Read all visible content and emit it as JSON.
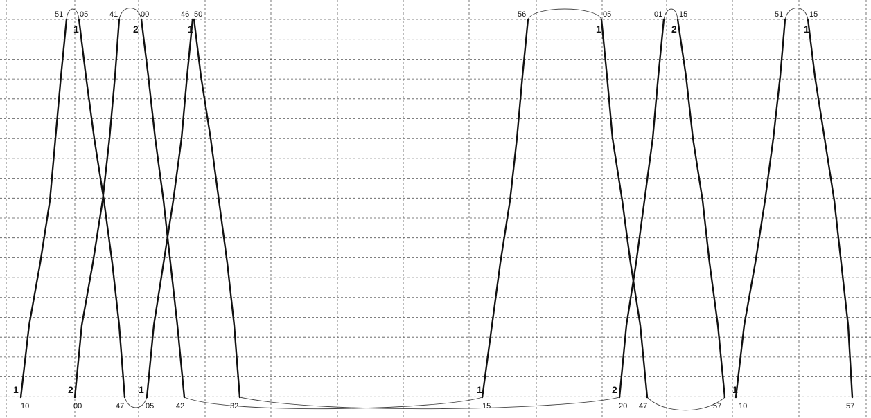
{
  "top_times": [
    "51",
    "05",
    "41",
    "00",
    "46",
    "50",
    "56",
    "05",
    "01",
    "15",
    "51",
    "15"
  ],
  "bottom_times": [
    "10",
    "00",
    "47",
    "05",
    "42",
    "32",
    "15",
    "20",
    "47",
    "57",
    "10",
    "57"
  ],
  "top_numbers": [
    "1",
    "2",
    "1",
    "1",
    "2",
    "1"
  ],
  "bottom_numbers": [
    "1",
    "2",
    "1",
    "1",
    "2",
    "1"
  ]
}
